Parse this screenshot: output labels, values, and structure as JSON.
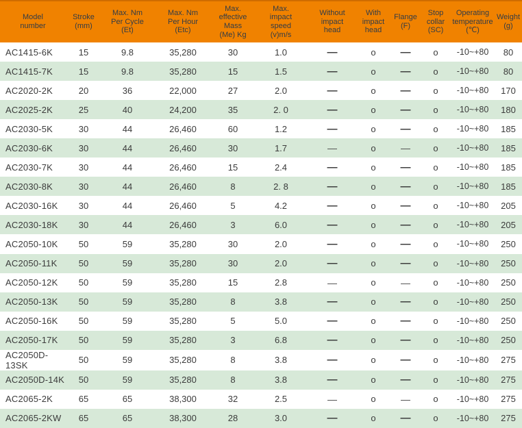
{
  "colors": {
    "header_bg": "#f08200",
    "header_top_border": "#cf6c00",
    "header_text": "#333c46",
    "row_alt_bg": "#d7e9d8",
    "row_bg": "#ffffff",
    "body_text": "#3b3b3b"
  },
  "table": {
    "columns": [
      {
        "key": "model-number",
        "label": "Model\nnumber"
      },
      {
        "key": "stroke",
        "label": "Stroke\n(mm)"
      },
      {
        "key": "max-nm-per-cycle",
        "label": "Max. Nm\nPer Cycle\n(Et)"
      },
      {
        "key": "max-nm-per-hour",
        "label": "Max. Nm\nPer Hour\n(Etc)"
      },
      {
        "key": "max-effective-mass",
        "label": "Max.\neffective\nMass\n(Me) Kg"
      },
      {
        "key": "max-impact-speed",
        "label": "Max.\nimpact\nspeed\n(v)m/s"
      },
      {
        "key": "without-impact-head",
        "label": "Without\nimpact\nhead"
      },
      {
        "key": "with-impact-head",
        "label": "With\nimpact\nhead"
      },
      {
        "key": "flange",
        "label": "Flange\n(F)"
      },
      {
        "key": "stop-collar",
        "label": "Stop\ncollar\n(SC)"
      },
      {
        "key": "operating-temperature",
        "label": "Operating\ntemperature\n(℃)"
      },
      {
        "key": "weight",
        "label": "Weight\n(g)"
      }
    ],
    "symbols": {
      "not_available": "—",
      "available": "o"
    },
    "rows": [
      {
        "dash": "bold",
        "cells": [
          "AC1415-6K",
          "15",
          "9.8",
          "35,280",
          "30",
          "1.0",
          "—",
          "o",
          "—",
          "o",
          "-10~+80",
          "80"
        ]
      },
      {
        "dash": "bold",
        "cells": [
          "AC1415-7K",
          "15",
          "9.8",
          "35,280",
          "15",
          "1.5",
          "—",
          "o",
          "—",
          "o",
          "-10~+80",
          "80"
        ]
      },
      {
        "dash": "bold",
        "cells": [
          "AC2020-2K",
          "20",
          "36",
          "22,000",
          "27",
          "2.0",
          "—",
          "o",
          "—",
          "o",
          "-10~+80",
          "170"
        ]
      },
      {
        "dash": "bold",
        "cells": [
          "AC2025-2K",
          "25",
          "40",
          "24,200",
          "35",
          "2. 0",
          "—",
          "o",
          "—",
          "o",
          "-10~+80",
          "180"
        ]
      },
      {
        "dash": "bold",
        "cells": [
          "AC2030-5K",
          "30",
          "44",
          "26,460",
          "60",
          "1.2",
          "—",
          "o",
          "—",
          "o",
          "-10~+80",
          "185"
        ]
      },
      {
        "dash": "thin",
        "cells": [
          "AC2030-6K",
          "30",
          "44",
          "26,460",
          "30",
          "1.7",
          "—",
          "o",
          "—",
          "o",
          "-10~+80",
          "185"
        ]
      },
      {
        "dash": "bold",
        "cells": [
          "AC2030-7K",
          "30",
          "44",
          "26,460",
          "15",
          "2.4",
          "—",
          "o",
          "—",
          "o",
          "-10~+80",
          "185"
        ]
      },
      {
        "dash": "bold",
        "cells": [
          "AC2030-8K",
          "30",
          "44",
          "26,460",
          "8",
          "2. 8",
          "—",
          "o",
          "—",
          "o",
          "-10~+80",
          "185"
        ]
      },
      {
        "dash": "bold",
        "cells": [
          "AC2030-16K",
          "30",
          "44",
          "26,460",
          "5",
          "4.2",
          "—",
          "o",
          "—",
          "o",
          "-10~+80",
          "205"
        ]
      },
      {
        "dash": "bold",
        "cells": [
          "AC2030-18K",
          "30",
          "44",
          "26,460",
          "3",
          "6.0",
          "—",
          "o",
          "—",
          "o",
          "-10~+80",
          "205"
        ]
      },
      {
        "dash": "bold",
        "cells": [
          "AC2050-10K",
          "50",
          "59",
          "35,280",
          "30",
          "2.0",
          "—",
          "o",
          "—",
          "o",
          "-10~+80",
          "250"
        ]
      },
      {
        "dash": "bold",
        "cells": [
          "AC2050-11K",
          "50",
          "59",
          "35,280",
          "30",
          "2.0",
          "—",
          "o",
          "—",
          "o",
          "-10~+80",
          "250"
        ]
      },
      {
        "dash": "thin",
        "cells": [
          "AC2050-12K",
          "50",
          "59",
          "35,280",
          "15",
          "2.8",
          "—",
          "o",
          "—",
          "o",
          "-10~+80",
          "250"
        ]
      },
      {
        "dash": "bold",
        "cells": [
          "AC2050-13K",
          "50",
          "59",
          "35,280",
          "8",
          "3.8",
          "—",
          "o",
          "—",
          "o",
          "-10~+80",
          "250"
        ]
      },
      {
        "dash": "bold",
        "cells": [
          "AC2050-16K",
          "50",
          "59",
          "35,280",
          "5",
          "5.0",
          "—",
          "o",
          "—",
          "o",
          "-10~+80",
          "250"
        ]
      },
      {
        "dash": "bold",
        "cells": [
          "AC2050-17K",
          "50",
          "59",
          "35,280",
          "3",
          "6.8",
          "—",
          "o",
          "—",
          "o",
          "-10~+80",
          "250"
        ]
      },
      {
        "dash": "bold",
        "cells": [
          "AC2050D-13SK",
          "50",
          "59",
          "35,280",
          "8",
          "3.8",
          "—",
          "o",
          "—",
          "o",
          "-10~+80",
          "275"
        ]
      },
      {
        "dash": "bold",
        "cells": [
          "AC2050D-14K",
          "50",
          "59",
          "35,280",
          "8",
          "3.8",
          "—",
          "o",
          "—",
          "o",
          "-10~+80",
          "275"
        ]
      },
      {
        "dash": "thin",
        "cells": [
          "AC2065-2K",
          "65",
          "65",
          "38,300",
          "32",
          "2.5",
          "—",
          "o",
          "—",
          "o",
          "-10~+80",
          "275"
        ]
      },
      {
        "dash": "bold",
        "cells": [
          "AC2065-2KW",
          "65",
          "65",
          "38,300",
          "28",
          "3.0",
          "—",
          "o",
          "—",
          "o",
          "-10~+80",
          "275"
        ]
      }
    ]
  }
}
